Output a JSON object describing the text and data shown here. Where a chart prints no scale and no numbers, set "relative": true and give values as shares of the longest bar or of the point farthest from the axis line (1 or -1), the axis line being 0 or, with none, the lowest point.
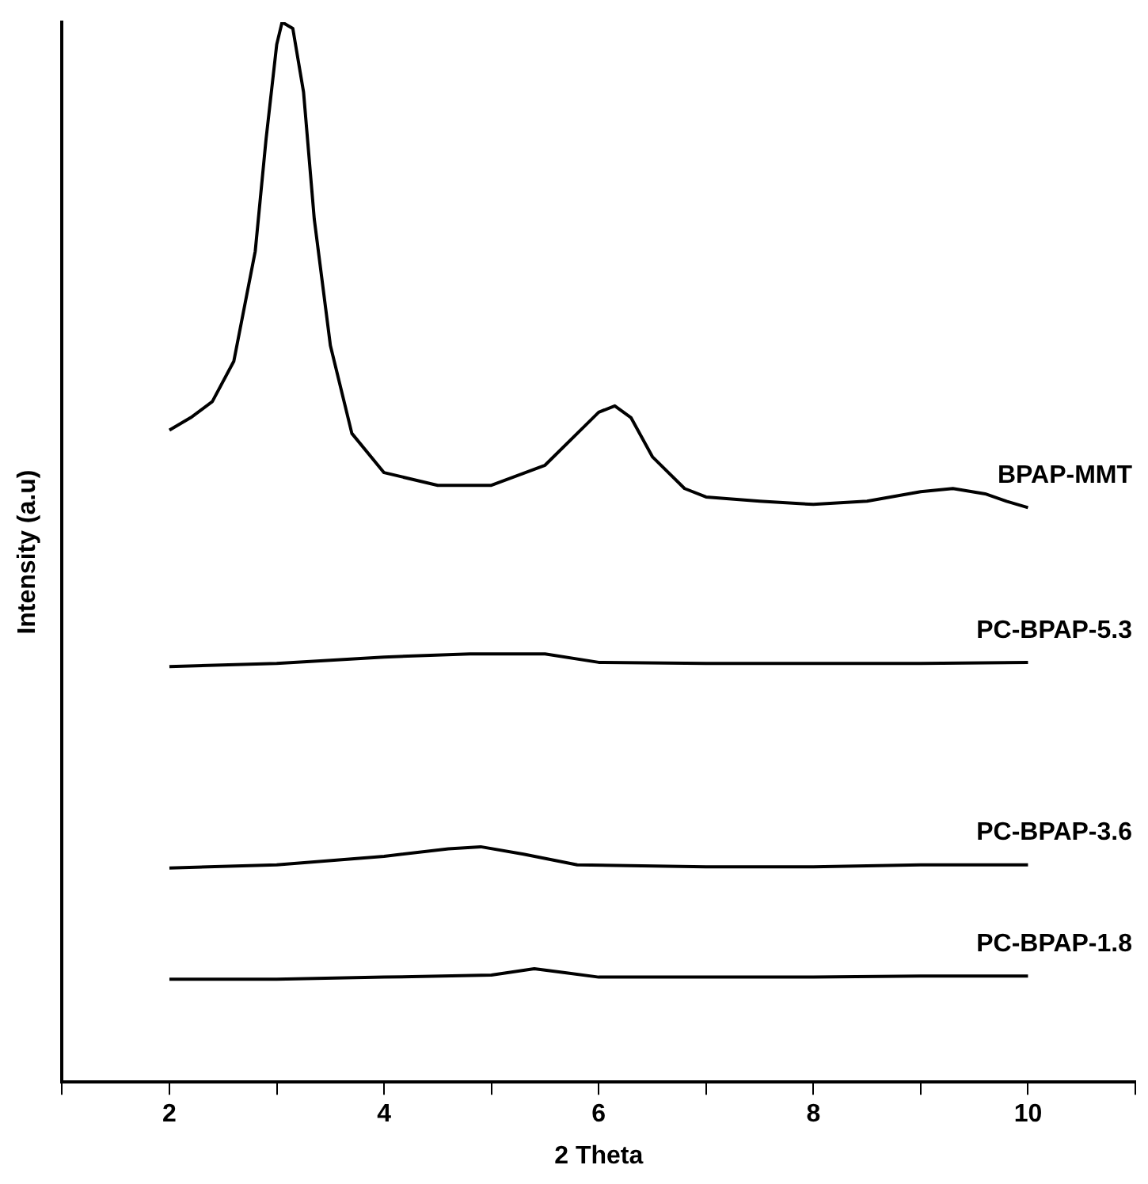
{
  "chart_data": {
    "type": "line",
    "xlabel": "2 Theta",
    "ylabel": "Intensity (a.u)",
    "relative": true,
    "tick_labels": "x",
    "xlim": [
      1,
      11
    ],
    "xticks": [
      {
        "value": 1,
        "label": null
      },
      2,
      {
        "value": 3,
        "label": null
      },
      4,
      {
        "value": 5,
        "label": null
      },
      6,
      {
        "value": 7,
        "label": null
      },
      8,
      {
        "value": 9,
        "label": null
      },
      10,
      {
        "value": 11,
        "label": null
      }
    ],
    "series": [
      {
        "name": "BPAP-MMT",
        "color": "#000000",
        "x": [
          2,
          2.2,
          2.4,
          2.6,
          2.8,
          2.9,
          3.0,
          3.05,
          3.15,
          3.25,
          3.35,
          3.5,
          3.7,
          4.0,
          4.5,
          5.0,
          5.5,
          5.8,
          6.0,
          6.15,
          6.3,
          6.5,
          6.8,
          7.0,
          7.5,
          8.0,
          8.5,
          9.0,
          9.3,
          9.6,
          9.8,
          10.0
        ],
        "values": [
          0.615,
          0.627,
          0.642,
          0.68,
          0.784,
          0.889,
          0.979,
          1,
          0.994,
          0.934,
          0.814,
          0.695,
          0.612,
          0.575,
          0.563,
          0.563,
          0.582,
          0.612,
          0.632,
          0.638,
          0.627,
          0.59,
          0.56,
          0.552,
          0.548,
          0.545,
          0.548,
          0.557,
          0.56,
          0.555,
          0.548,
          0.542
        ]
      },
      {
        "name": "PC-BPAP-5.3",
        "color": "#000000",
        "x": [
          2,
          3,
          4,
          4.8,
          5.5,
          6.0,
          7,
          8,
          9,
          10
        ],
        "values": [
          0.392,
          0.395,
          0.401,
          0.404,
          0.404,
          0.396,
          0.395,
          0.395,
          0.395,
          0.396
        ]
      },
      {
        "name": "PC-BPAP-3.6",
        "color": "#000000",
        "x": [
          2,
          3,
          4,
          4.6,
          4.9,
          5.3,
          5.8,
          7,
          8,
          9,
          10
        ],
        "values": [
          0.202,
          0.205,
          0.213,
          0.22,
          0.222,
          0.215,
          0.205,
          0.203,
          0.203,
          0.205,
          0.205
        ]
      },
      {
        "name": "PC-BPAP-1.8",
        "color": "#000000",
        "x": [
          2,
          3,
          4,
          5,
          5.4,
          5.7,
          6,
          7,
          8,
          9,
          10
        ],
        "values": [
          0.097,
          0.097,
          0.099,
          0.101,
          0.107,
          0.103,
          0.099,
          0.099,
          0.099,
          0.1,
          0.1
        ]
      }
    ]
  }
}
